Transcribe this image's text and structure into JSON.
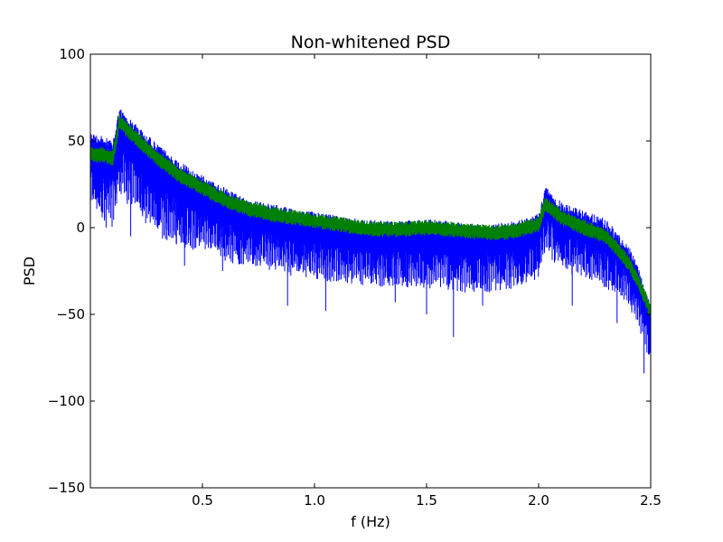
{
  "chart_data": {
    "type": "line",
    "title": "Non-whitened PSD",
    "xlabel": "f (Hz)",
    "ylabel": "PSD",
    "xlim": [
      0.0,
      2.5
    ],
    "ylim": [
      -150,
      100
    ],
    "xticks": [
      0.5,
      1.0,
      1.5,
      2.0,
      2.5
    ],
    "xtick_labels": [
      "0.5",
      "1.0",
      "1.5",
      "2.0",
      "2.5"
    ],
    "yticks": [
      100,
      50,
      0,
      -50,
      -100,
      -150
    ],
    "ytick_labels": [
      "100",
      "50",
      "0",
      "−50",
      "−100",
      "−150"
    ],
    "grid": false,
    "series": [
      {
        "color": "#0000ff",
        "style": "noisy-band",
        "x": [
          0.0,
          0.05,
          0.1,
          0.13,
          0.15,
          0.2,
          0.3,
          0.4,
          0.5,
          0.6,
          0.7,
          0.8,
          0.9,
          1.0,
          1.1,
          1.2,
          1.3,
          1.4,
          1.5,
          1.6,
          1.7,
          1.8,
          1.9,
          2.0,
          2.03,
          2.1,
          2.2,
          2.3,
          2.4,
          2.45,
          2.5
        ],
        "upper": [
          55,
          53,
          50,
          70,
          66,
          60,
          48,
          38,
          30,
          23,
          16,
          14,
          11,
          9,
          7,
          5,
          4,
          4,
          5,
          4,
          2,
          2,
          4,
          8,
          24,
          15,
          10,
          5,
          -10,
          -25,
          -45
        ],
        "lower": [
          10,
          5,
          0,
          20,
          14,
          8,
          -5,
          -12,
          -15,
          -20,
          -22,
          -25,
          -28,
          -30,
          -32,
          -33,
          -35,
          -35,
          -35,
          -36,
          -38,
          -37,
          -35,
          -30,
          -15,
          -25,
          -30,
          -35,
          -45,
          -60,
          -80
        ],
        "min_spikes": [
          [
            0.07,
            0
          ],
          [
            0.18,
            -5
          ],
          [
            0.42,
            -22
          ],
          [
            0.59,
            -25
          ],
          [
            0.88,
            -45
          ],
          [
            1.05,
            -48
          ],
          [
            1.36,
            -43
          ],
          [
            1.5,
            -50
          ],
          [
            1.62,
            -63
          ],
          [
            1.75,
            -45
          ],
          [
            2.15,
            -45
          ],
          [
            2.35,
            -55
          ],
          [
            2.47,
            -84
          ]
        ]
      },
      {
        "color": "#008000",
        "style": "mean-line",
        "x": [
          0.0,
          0.05,
          0.1,
          0.13,
          0.15,
          0.2,
          0.3,
          0.4,
          0.5,
          0.6,
          0.7,
          0.8,
          0.9,
          1.0,
          1.1,
          1.2,
          1.3,
          1.4,
          1.5,
          1.6,
          1.7,
          1.8,
          1.9,
          2.0,
          2.03,
          2.1,
          2.2,
          2.3,
          2.4,
          2.45,
          2.5
        ],
        "y": [
          42,
          42,
          40,
          62,
          58,
          52,
          40,
          30,
          23,
          16,
          11,
          8,
          6,
          4,
          2,
          0,
          -1,
          -1,
          0,
          -1,
          -2,
          -3,
          -2,
          2,
          14,
          6,
          0,
          -5,
          -20,
          -33,
          -48
        ]
      }
    ]
  }
}
